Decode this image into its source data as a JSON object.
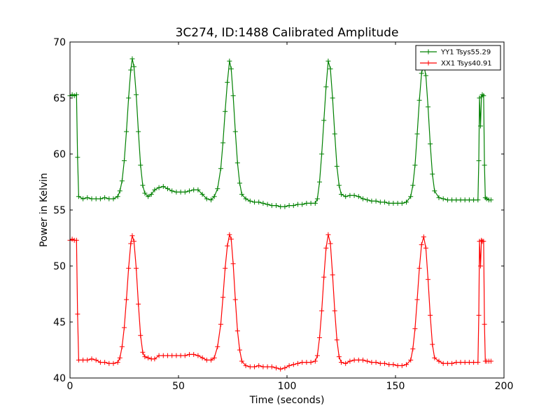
{
  "chart_data": {
    "type": "line",
    "title": "3C274, ID:1488 Calibrated Amplitude",
    "xlabel": "Time (seconds)",
    "ylabel": "Power in Kelvin",
    "xlim": [
      0,
      200
    ],
    "ylim": [
      40,
      70
    ],
    "xticks": [
      0,
      50,
      100,
      150,
      200
    ],
    "yticks": [
      40,
      45,
      50,
      55,
      60,
      65,
      70
    ],
    "grid": false,
    "legend_position": "top-right",
    "marker": "+",
    "series": [
      {
        "name": "YY1 Tsys55.29",
        "color": "#008000",
        "points": [
          [
            0,
            65.2
          ],
          [
            1,
            65.3
          ],
          [
            2,
            65.2
          ],
          [
            3,
            65.3
          ],
          [
            3.5,
            59.7
          ],
          [
            4,
            56.2
          ],
          [
            6,
            56.0
          ],
          [
            8,
            56.1
          ],
          [
            10,
            56.0
          ],
          [
            12,
            56.0
          ],
          [
            14,
            56.0
          ],
          [
            16,
            56.1
          ],
          [
            18,
            56.0
          ],
          [
            20,
            56.0
          ],
          [
            22,
            56.2
          ],
          [
            23,
            56.7
          ],
          [
            24,
            57.6
          ],
          [
            25,
            59.4
          ],
          [
            26,
            62.0
          ],
          [
            27,
            65.0
          ],
          [
            28,
            67.5
          ],
          [
            28.7,
            68.5
          ],
          [
            29.5,
            67.8
          ],
          [
            30.5,
            65.3
          ],
          [
            31.5,
            62.0
          ],
          [
            32.5,
            59.0
          ],
          [
            33.5,
            57.2
          ],
          [
            34.5,
            56.5
          ],
          [
            36,
            56.2
          ],
          [
            37.5,
            56.4
          ],
          [
            39,
            56.8
          ],
          [
            41,
            57.0
          ],
          [
            43,
            57.1
          ],
          [
            45,
            56.9
          ],
          [
            47,
            56.7
          ],
          [
            49,
            56.6
          ],
          [
            51,
            56.6
          ],
          [
            53,
            56.6
          ],
          [
            55,
            56.7
          ],
          [
            57,
            56.8
          ],
          [
            59,
            56.8
          ],
          [
            61,
            56.4
          ],
          [
            63,
            56.0
          ],
          [
            65,
            55.9
          ],
          [
            66.5,
            56.2
          ],
          [
            68,
            56.9
          ],
          [
            69.5,
            58.7
          ],
          [
            70.5,
            61.0
          ],
          [
            71.5,
            63.8
          ],
          [
            72.5,
            66.4
          ],
          [
            73.5,
            68.3
          ],
          [
            74.3,
            67.6
          ],
          [
            75.2,
            65.2
          ],
          [
            76.2,
            62.0
          ],
          [
            77.2,
            59.2
          ],
          [
            78.2,
            57.4
          ],
          [
            79.2,
            56.4
          ],
          [
            81,
            56.0
          ],
          [
            83,
            55.8
          ],
          [
            85,
            55.7
          ],
          [
            87,
            55.7
          ],
          [
            89,
            55.6
          ],
          [
            91,
            55.5
          ],
          [
            93,
            55.4
          ],
          [
            95,
            55.4
          ],
          [
            97,
            55.3
          ],
          [
            99,
            55.3
          ],
          [
            101,
            55.4
          ],
          [
            103,
            55.4
          ],
          [
            105,
            55.5
          ],
          [
            107,
            55.5
          ],
          [
            109,
            55.6
          ],
          [
            111,
            55.6
          ],
          [
            113,
            55.6
          ],
          [
            114,
            56.0
          ],
          [
            115,
            57.5
          ],
          [
            116,
            60.0
          ],
          [
            117,
            63.0
          ],
          [
            118,
            66.0
          ],
          [
            119,
            68.3
          ],
          [
            120,
            67.6
          ],
          [
            121,
            65.0
          ],
          [
            122,
            61.8
          ],
          [
            123,
            58.9
          ],
          [
            124,
            57.2
          ],
          [
            125,
            56.4
          ],
          [
            127,
            56.2
          ],
          [
            129,
            56.3
          ],
          [
            131,
            56.3
          ],
          [
            133,
            56.2
          ],
          [
            135,
            56.0
          ],
          [
            137,
            55.9
          ],
          [
            139,
            55.8
          ],
          [
            141,
            55.8
          ],
          [
            143,
            55.7
          ],
          [
            145,
            55.7
          ],
          [
            147,
            55.6
          ],
          [
            149,
            55.6
          ],
          [
            151,
            55.6
          ],
          [
            153,
            55.6
          ],
          [
            155,
            55.7
          ],
          [
            157,
            56.2
          ],
          [
            158,
            57.2
          ],
          [
            159,
            59.0
          ],
          [
            160,
            61.8
          ],
          [
            161,
            64.8
          ],
          [
            162,
            67.2
          ],
          [
            163,
            68.0
          ],
          [
            164,
            67.0
          ],
          [
            165,
            64.2
          ],
          [
            166,
            60.9
          ],
          [
            167,
            58.2
          ],
          [
            168,
            56.7
          ],
          [
            170,
            56.1
          ],
          [
            172,
            56.0
          ],
          [
            174,
            55.9
          ],
          [
            176,
            55.9
          ],
          [
            178,
            55.9
          ],
          [
            180,
            55.9
          ],
          [
            182,
            55.9
          ],
          [
            184,
            55.9
          ],
          [
            186,
            55.9
          ],
          [
            188,
            55.9
          ],
          [
            188.4,
            59.4
          ],
          [
            188.7,
            65.0
          ],
          [
            189.2,
            62.5
          ],
          [
            189.6,
            65.1
          ],
          [
            190,
            65.3
          ],
          [
            190.6,
            65.2
          ],
          [
            191,
            59.0
          ],
          [
            191.4,
            56.1
          ],
          [
            192,
            56.0
          ],
          [
            193,
            55.9
          ],
          [
            194,
            55.9
          ]
        ]
      },
      {
        "name": "XX1 Tsys40.91",
        "color": "#ff0000",
        "points": [
          [
            0,
            52.3
          ],
          [
            1,
            52.4
          ],
          [
            2,
            52.3
          ],
          [
            3,
            52.3
          ],
          [
            3.5,
            45.7
          ],
          [
            4,
            41.6
          ],
          [
            6,
            41.6
          ],
          [
            8,
            41.6
          ],
          [
            10,
            41.7
          ],
          [
            12,
            41.6
          ],
          [
            14,
            41.4
          ],
          [
            16,
            41.4
          ],
          [
            18,
            41.3
          ],
          [
            20,
            41.3
          ],
          [
            22,
            41.4
          ],
          [
            23,
            41.8
          ],
          [
            24,
            42.8
          ],
          [
            25,
            44.5
          ],
          [
            26,
            47.0
          ],
          [
            27,
            49.8
          ],
          [
            28,
            52.0
          ],
          [
            28.7,
            52.7
          ],
          [
            29.5,
            52.2
          ],
          [
            30.5,
            49.8
          ],
          [
            31.5,
            46.6
          ],
          [
            32.5,
            43.8
          ],
          [
            33.5,
            42.3
          ],
          [
            34.5,
            41.9
          ],
          [
            36,
            41.8
          ],
          [
            37.5,
            41.7
          ],
          [
            39,
            41.7
          ],
          [
            41,
            42.0
          ],
          [
            43,
            42.0
          ],
          [
            45,
            42.0
          ],
          [
            47,
            42.0
          ],
          [
            49,
            42.0
          ],
          [
            51,
            42.0
          ],
          [
            53,
            42.0
          ],
          [
            55,
            42.1
          ],
          [
            57,
            42.1
          ],
          [
            59,
            42.0
          ],
          [
            61,
            41.8
          ],
          [
            63,
            41.6
          ],
          [
            65,
            41.6
          ],
          [
            66.5,
            41.8
          ],
          [
            68,
            42.8
          ],
          [
            69.5,
            44.8
          ],
          [
            70.5,
            47.2
          ],
          [
            71.5,
            49.8
          ],
          [
            72.5,
            51.8
          ],
          [
            73.5,
            52.8
          ],
          [
            74.3,
            52.4
          ],
          [
            75.2,
            50.2
          ],
          [
            76.2,
            47.0
          ],
          [
            77.2,
            44.2
          ],
          [
            78.2,
            42.5
          ],
          [
            79.2,
            41.5
          ],
          [
            81,
            41.1
          ],
          [
            83,
            41.0
          ],
          [
            85,
            41.0
          ],
          [
            87,
            41.1
          ],
          [
            89,
            41.0
          ],
          [
            91,
            41.0
          ],
          [
            93,
            41.0
          ],
          [
            95,
            40.9
          ],
          [
            97,
            40.8
          ],
          [
            99,
            40.9
          ],
          [
            101,
            41.1
          ],
          [
            103,
            41.2
          ],
          [
            105,
            41.3
          ],
          [
            107,
            41.4
          ],
          [
            109,
            41.4
          ],
          [
            111,
            41.4
          ],
          [
            113,
            41.5
          ],
          [
            114,
            42.0
          ],
          [
            115,
            43.6
          ],
          [
            116,
            46.0
          ],
          [
            117,
            49.0
          ],
          [
            118,
            51.6
          ],
          [
            119,
            52.8
          ],
          [
            120,
            52.0
          ],
          [
            121,
            49.2
          ],
          [
            122,
            46.0
          ],
          [
            123,
            43.4
          ],
          [
            124,
            41.9
          ],
          [
            125,
            41.4
          ],
          [
            127,
            41.3
          ],
          [
            129,
            41.5
          ],
          [
            131,
            41.6
          ],
          [
            133,
            41.6
          ],
          [
            135,
            41.6
          ],
          [
            137,
            41.5
          ],
          [
            139,
            41.4
          ],
          [
            141,
            41.4
          ],
          [
            143,
            41.3
          ],
          [
            145,
            41.3
          ],
          [
            147,
            41.2
          ],
          [
            149,
            41.2
          ],
          [
            151,
            41.1
          ],
          [
            153,
            41.1
          ],
          [
            155,
            41.2
          ],
          [
            157,
            41.6
          ],
          [
            158,
            42.6
          ],
          [
            159,
            44.4
          ],
          [
            160,
            47.0
          ],
          [
            161,
            49.8
          ],
          [
            162,
            51.9
          ],
          [
            163,
            52.6
          ],
          [
            164,
            51.6
          ],
          [
            165,
            48.8
          ],
          [
            166,
            45.6
          ],
          [
            167,
            43.0
          ],
          [
            168,
            41.8
          ],
          [
            170,
            41.5
          ],
          [
            172,
            41.3
          ],
          [
            174,
            41.3
          ],
          [
            176,
            41.3
          ],
          [
            178,
            41.4
          ],
          [
            180,
            41.4
          ],
          [
            182,
            41.4
          ],
          [
            184,
            41.4
          ],
          [
            186,
            41.4
          ],
          [
            188,
            41.4
          ],
          [
            188.4,
            45.6
          ],
          [
            188.7,
            52.2
          ],
          [
            189.2,
            50.0
          ],
          [
            189.6,
            52.3
          ],
          [
            190,
            52.2
          ],
          [
            190.6,
            52.2
          ],
          [
            191,
            44.8
          ],
          [
            191.4,
            41.5
          ],
          [
            192,
            41.5
          ],
          [
            193,
            41.5
          ],
          [
            194,
            41.5
          ]
        ]
      }
    ]
  }
}
